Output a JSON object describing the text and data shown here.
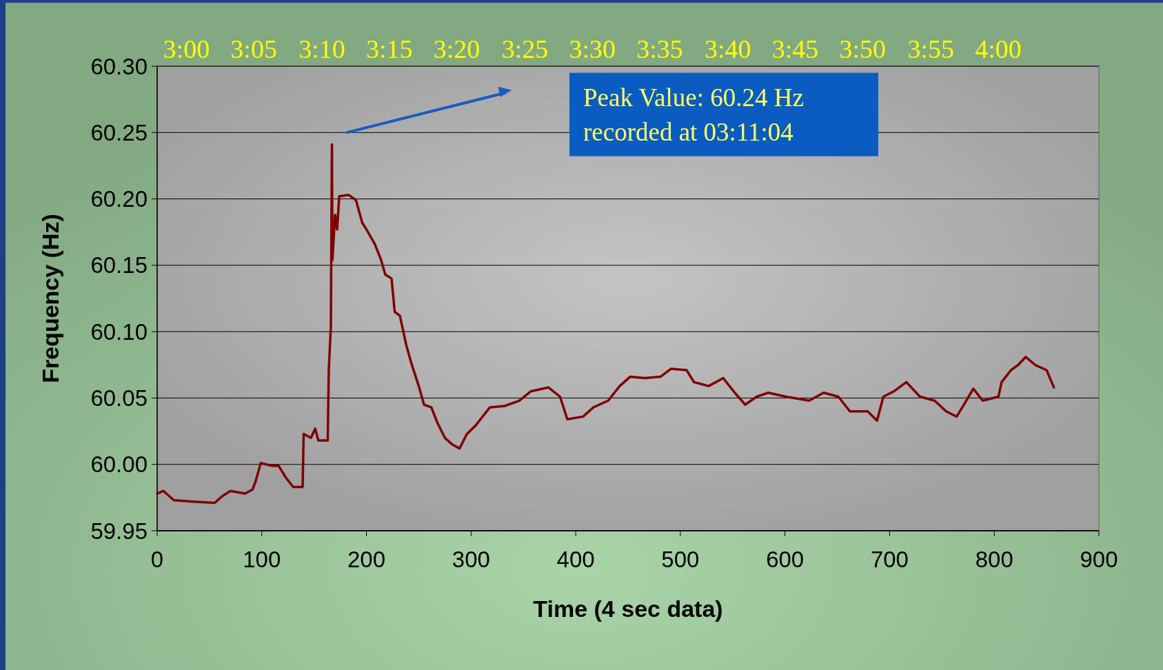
{
  "chart_data": {
    "type": "line",
    "xlabel": "Time (4 sec data)",
    "ylabel": "Frequency (Hz)",
    "xlim": [
      0,
      900
    ],
    "xticks": [
      0,
      100,
      200,
      300,
      400,
      500,
      600,
      700,
      800,
      900
    ],
    "ylim": [
      59.95,
      60.3
    ],
    "yticks": [
      {
        "value": 59.95,
        "label": "59.95"
      },
      {
        "value": 60,
        "label": "60.00"
      },
      {
        "value": 60.05,
        "label": "60.05"
      },
      {
        "value": 60.1,
        "label": "60.10"
      },
      {
        "value": 60.15,
        "label": "60.15"
      },
      {
        "value": 60.2,
        "label": "60.20"
      },
      {
        "value": 60.25,
        "label": "60.25"
      },
      {
        "value": 60.3,
        "label": "60.30"
      }
    ],
    "x2lim": [
      2.964,
      4.124
    ],
    "x2ticks": [
      {
        "value": 3,
        "label": "3:00"
      },
      {
        "value": 3.083,
        "label": "3:05"
      },
      {
        "value": 3.167,
        "label": "3:10"
      },
      {
        "value": 3.25,
        "label": "3:15"
      },
      {
        "value": 3.333,
        "label": "3:20"
      },
      {
        "value": 3.417,
        "label": "3:25"
      },
      {
        "value": 3.5,
        "label": "3:30"
      },
      {
        "value": 3.583,
        "label": "3:35"
      },
      {
        "value": 3.667,
        "label": "3:40"
      },
      {
        "value": 3.75,
        "label": "3:45"
      },
      {
        "value": 3.833,
        "label": "3:50"
      },
      {
        "value": 3.917,
        "label": "3:55"
      },
      {
        "value": 4,
        "label": "4:00"
      }
    ],
    "grid": "y",
    "line_style": "solid",
    "marker": "none",
    "annotations": [
      "Peak Value: 60.24 Hz\nrecorded at 03:11:04"
    ],
    "series": [
      {
        "color": "#800000",
        "x": [
          0,
          6,
          16,
          34,
          55,
          62,
          70,
          84,
          91,
          94,
          99,
          109,
          116,
          123,
          130,
          139,
          140,
          147,
          151,
          154,
          163,
          164,
          166,
          167,
          167.5,
          170,
          172,
          174,
          183,
          190,
          196,
          200,
          208,
          214,
          218,
          224,
          227,
          232,
          238,
          243,
          250,
          255,
          262,
          268,
          275,
          282,
          289,
          296,
          304,
          309,
          318,
          332,
          346,
          357,
          374,
          385,
          392,
          407,
          417,
          431,
          442,
          452,
          466,
          481,
          491,
          506,
          513,
          527,
          541,
          552,
          562,
          573,
          584,
          601,
          623,
          637,
          651,
          662,
          679,
          688,
          694,
          704,
          716,
          729,
          743,
          754,
          764,
          771,
          780,
          789,
          804,
          807,
          816,
          823,
          830,
          839,
          850,
          857
        ],
        "values": [
          59.978,
          59.98,
          59.973,
          59.972,
          59.971,
          59.976,
          59.98,
          59.978,
          59.981,
          59.987,
          60.001,
          59.999,
          59.999,
          59.99,
          59.983,
          59.983,
          60.023,
          60.02,
          60.027,
          60.018,
          60.018,
          60.071,
          60.104,
          60.241,
          60.154,
          60.188,
          60.177,
          60.202,
          60.203,
          60.199,
          60.182,
          60.177,
          60.166,
          60.154,
          60.143,
          60.14,
          60.115,
          60.112,
          60.09,
          60.076,
          60.059,
          60.045,
          60.043,
          60.031,
          60.02,
          60.015,
          60.012,
          60.023,
          60.029,
          60.034,
          60.043,
          60.044,
          60.048,
          60.055,
          60.058,
          60.051,
          60.034,
          60.036,
          60.043,
          60.048,
          60.059,
          60.066,
          60.065,
          60.066,
          60.072,
          60.071,
          60.062,
          60.059,
          60.065,
          60.054,
          60.045,
          60.051,
          60.054,
          60.051,
          60.048,
          60.054,
          60.051,
          60.04,
          60.04,
          60.033,
          60.051,
          60.055,
          60.062,
          60.051,
          60.048,
          60.04,
          60.036,
          60.045,
          60.057,
          60.048,
          60.051,
          60.062,
          60.071,
          60.075,
          60.081,
          60.075,
          60.071,
          60.058
        ]
      }
    ]
  }
}
